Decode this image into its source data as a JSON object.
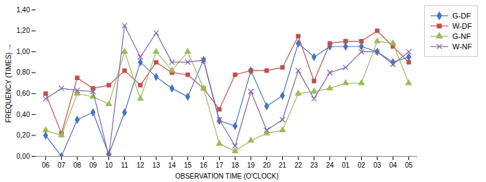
{
  "chart_data": {
    "type": "line",
    "categories": [
      "06",
      "07",
      "08",
      "09",
      "10",
      "11",
      "12",
      "13",
      "14",
      "15",
      "16",
      "17",
      "18",
      "19",
      "20",
      "21",
      "22",
      "23",
      "24",
      "01",
      "02",
      "03",
      "04",
      "05"
    ],
    "series": [
      {
        "name": "G-DF",
        "color": "#4472C4",
        "marker": "diamond",
        "values": [
          0.2,
          0.0,
          0.35,
          0.42,
          0.02,
          0.42,
          0.9,
          0.76,
          0.65,
          0.57,
          0.92,
          0.34,
          0.29,
          0.82,
          0.48,
          0.58,
          1.08,
          0.95,
          1.05,
          1.05,
          1.05,
          1.0,
          0.9,
          0.95
        ]
      },
      {
        "name": "W-DF",
        "color": "#C0504D",
        "marker": "square",
        "values": [
          0.6,
          0.22,
          0.75,
          0.65,
          0.68,
          0.82,
          0.68,
          0.9,
          0.8,
          0.78,
          0.65,
          0.45,
          0.78,
          0.82,
          0.82,
          0.85,
          1.15,
          0.72,
          1.08,
          1.1,
          1.1,
          1.2,
          1.05,
          0.9
        ]
      },
      {
        "name": "G-NF",
        "color": "#9BBB59",
        "marker": "triangle",
        "values": [
          0.25,
          0.2,
          0.6,
          0.57,
          0.5,
          1.0,
          0.55,
          1.0,
          0.82,
          1.0,
          0.65,
          0.12,
          0.05,
          0.15,
          0.22,
          0.25,
          0.6,
          0.62,
          0.65,
          0.7,
          0.7,
          1.1,
          1.08,
          0.7
        ]
      },
      {
        "name": "W-NF",
        "color": "#8064A2",
        "marker": "times",
        "values": [
          0.55,
          0.65,
          0.63,
          0.62,
          0.0,
          1.25,
          0.95,
          1.18,
          0.9,
          0.9,
          0.92,
          0.35,
          0.1,
          0.62,
          0.25,
          0.35,
          0.82,
          0.55,
          0.8,
          0.85,
          1.0,
          1.0,
          0.88,
          1.0
        ]
      }
    ],
    "xlabel": "OBSERVATION TIME (O'CLOCK)",
    "ylabel": "FREQUENCY (TIMES)",
    "ylim": [
      0.0,
      1.4
    ],
    "yticks": [
      {
        "value": 0.0,
        "label": "0,00"
      },
      {
        "value": 0.2,
        "label": "0,20"
      },
      {
        "value": 0.4,
        "label": "0,40"
      },
      {
        "value": 0.6,
        "label": "0,60"
      },
      {
        "value": 0.8,
        "label": "0,80"
      },
      {
        "value": 1.0,
        "label": "1,00"
      },
      {
        "value": 1.2,
        "label": "1,20"
      },
      {
        "value": 1.4,
        "label": "1,40"
      }
    ],
    "grid": false,
    "legend": "right"
  }
}
